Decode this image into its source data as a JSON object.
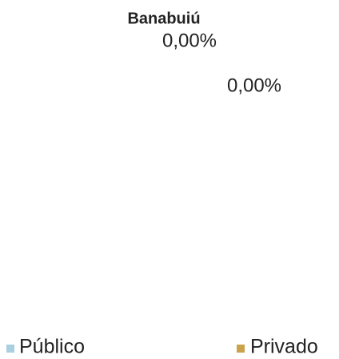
{
  "chart_data": {
    "type": "pie",
    "title": "Banabuiú",
    "categories": [
      "Público",
      "Privado"
    ],
    "values": [
      0,
      0
    ],
    "value_labels": [
      "0,00%",
      "0,00%"
    ],
    "colors": [
      "#a9cfe0",
      "#c9a24a"
    ],
    "legend": "bottom"
  }
}
